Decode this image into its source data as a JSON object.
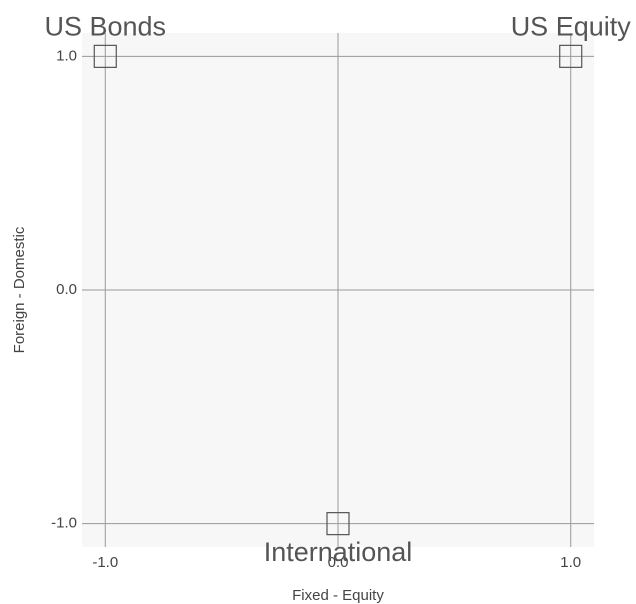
{
  "chart_data": {
    "type": "scatter",
    "x_label": "Fixed - Equity",
    "y_label": "Foreign - Domestic",
    "labels": [
      "US Bonds",
      "US Equity",
      "International"
    ],
    "x": [
      -1.0,
      1.0,
      0.0
    ],
    "values": [
      1.0,
      1.0,
      -1.0
    ],
    "xlim": [
      -1.1,
      1.1
    ],
    "ylim": [
      -1.1,
      1.1
    ],
    "xticks": [
      {
        "value": -1.0,
        "label": "-1.0"
      },
      {
        "value": 0.0,
        "label": "0.0"
      },
      {
        "value": 1.0,
        "label": "1.0"
      }
    ],
    "yticks": [
      {
        "value": -1.0,
        "label": "-1.0"
      },
      {
        "value": 0.0,
        "label": "0.0"
      },
      {
        "value": 1.0,
        "label": "1.0"
      }
    ],
    "grid": true,
    "color": "#555555"
  }
}
